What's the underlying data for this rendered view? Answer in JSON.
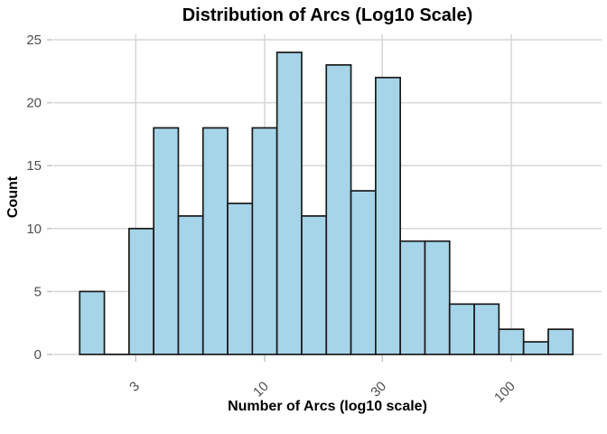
{
  "chart_data": {
    "type": "bar",
    "subtype": "histogram",
    "title": "Distribution of Arcs (Log10 Scale)",
    "xlabel": "Number of Arcs (log10 scale)",
    "ylabel": "Count",
    "x_scale": "log10",
    "xticks": [
      3,
      10,
      30,
      100
    ],
    "yticks": [
      0,
      5,
      10,
      15,
      20,
      25
    ],
    "ylim": [
      0,
      25
    ],
    "grid": "major-only",
    "legend": "none",
    "bin_edges_log10": [
      0.25,
      0.35,
      0.45,
      0.55,
      0.65,
      0.75,
      0.85,
      0.95,
      1.05,
      1.15,
      1.25,
      1.35,
      1.45,
      1.55,
      1.65,
      1.75,
      1.85,
      1.95,
      2.05,
      2.15,
      2.25
    ],
    "counts": [
      5,
      0,
      10,
      18,
      11,
      18,
      12,
      18,
      24,
      11,
      23,
      13,
      22,
      9,
      9,
      4,
      4,
      2,
      1,
      2
    ],
    "colors": {
      "bar_fill": "#A6D5EA",
      "bar_stroke": "#1A1A1A",
      "grid": "#D6D6D6",
      "tick": "#C6C6C6",
      "tick_label": "#4D4D4D",
      "text": "#000000",
      "background": "#FFFFFF"
    }
  }
}
